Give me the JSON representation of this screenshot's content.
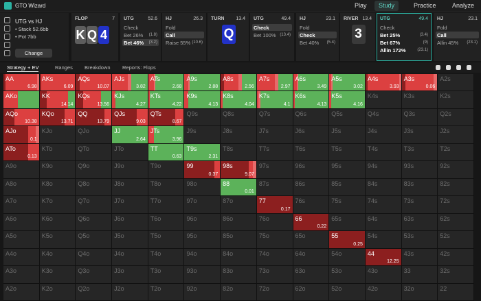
{
  "nav": {
    "logo": "GTO Wizard",
    "links": [
      "Play",
      "Study",
      "Practice",
      "Analyze"
    ],
    "active": 1
  },
  "spot": {
    "title": "UTG vs HJ",
    "stack": "• Stack 52.6bb",
    "pot": "• Pot 7bb",
    "button": "Change"
  },
  "nodes": [
    {
      "label": "FLOP",
      "value": 7,
      "cards": [
        {
          "rank": "K",
          "color": "#5d5d5d"
        },
        {
          "rank": "Q",
          "color": "#5d5d5d"
        },
        {
          "rank": "4",
          "color": "#2232c8"
        }
      ]
    },
    {
      "label": "UTG",
      "value": 52.6,
      "selected": 2,
      "options": [
        {
          "text": "Check"
        },
        {
          "text": "Bet 26%",
          "amount": "(1.8)"
        },
        {
          "text": "Bet 46%",
          "amount": "(3.2)"
        }
      ]
    },
    {
      "label": "HJ",
      "value": 26.3,
      "selected": 1,
      "options": [
        {
          "text": "Fold"
        },
        {
          "text": "Call"
        },
        {
          "text": "Raise 55%",
          "amount": "(10.6)"
        }
      ]
    },
    {
      "label": "TURN",
      "value": 13.4,
      "cards": [
        {
          "rank": "Q",
          "color": "#2232c8"
        }
      ]
    },
    {
      "label": "UTG",
      "value": 49.4,
      "selected": 0,
      "options": [
        {
          "text": "Check"
        },
        {
          "text": "Bet 100%",
          "amount": "(13.4)"
        }
      ]
    },
    {
      "label": "HJ",
      "value": 23.1,
      "selected": 1,
      "options": [
        {
          "text": "Fold"
        },
        {
          "text": "Check"
        },
        {
          "text": "Bet 40%",
          "amount": "(5.4)"
        }
      ]
    },
    {
      "label": "RIVER",
      "value": 13.4,
      "cards": [
        {
          "rank": "3",
          "color": "#3a3a3a"
        }
      ]
    },
    {
      "label": "UTG",
      "value": 49.4,
      "active": true,
      "options": [
        {
          "text": "Check",
          "color": "#5cb25a"
        },
        {
          "text": "Bet 25%",
          "amount": "(3.4)",
          "color": "#e86a6a"
        },
        {
          "text": "Bet 67%",
          "amount": "(9)",
          "color": "#dc4040"
        },
        {
          "text": "Allin 172%",
          "amount": "(23.1)",
          "color": "#8c1f1f"
        }
      ]
    },
    {
      "label": "HJ",
      "value": 23.1,
      "selected": 1,
      "options": [
        {
          "text": "Fold"
        },
        {
          "text": "Call"
        },
        {
          "text": "Allin 45%",
          "amount": "(23.1)"
        }
      ]
    }
  ],
  "tabs": {
    "items": [
      "Strategy + EV",
      "Ranges",
      "Breakdown",
      "Reports: Flops"
    ],
    "active": 0
  },
  "grid": {
    "hands": [
      [
        "AA",
        "AKs",
        "AQs",
        "AJs",
        "ATs",
        "A9s",
        "A8s",
        "A7s",
        "A6s",
        "A5s",
        "A4s",
        "A3s",
        "A2s"
      ],
      [
        "AKo",
        "KK",
        "KQs",
        "KJs",
        "KTs",
        "K9s",
        "K8s",
        "K7s",
        "K6s",
        "K5s",
        "K4s",
        "K3s",
        "K2s"
      ],
      [
        "AQo",
        "KQo",
        "QQ",
        "QJs",
        "QTs",
        "Q9s",
        "Q8s",
        "Q7s",
        "Q6s",
        "Q5s",
        "Q4s",
        "Q3s",
        "Q2s"
      ],
      [
        "AJo",
        "KJo",
        "QJo",
        "JJ",
        "JTs",
        "J9s",
        "J8s",
        "J7s",
        "J6s",
        "J5s",
        "J4s",
        "J3s",
        "J2s"
      ],
      [
        "ATo",
        "KTo",
        "QTo",
        "JTo",
        "TT",
        "T9s",
        "T8s",
        "T7s",
        "T6s",
        "T5s",
        "T4s",
        "T3s",
        "T2s"
      ],
      [
        "A9o",
        "K9o",
        "Q9o",
        "J9o",
        "T9o",
        "99",
        "98s",
        "97s",
        "96s",
        "95s",
        "94s",
        "93s",
        "92s"
      ],
      [
        "A8o",
        "K8o",
        "Q8o",
        "J8o",
        "T8o",
        "98o",
        "88",
        "87s",
        "86s",
        "85s",
        "84s",
        "83s",
        "82s"
      ],
      [
        "A7o",
        "K7o",
        "Q7o",
        "J7o",
        "T7o",
        "97o",
        "87o",
        "77",
        "76s",
        "75s",
        "74s",
        "73s",
        "72s"
      ],
      [
        "A6o",
        "K6o",
        "Q6o",
        "J6o",
        "T6o",
        "96o",
        "86o",
        "76o",
        "66",
        "65s",
        "64s",
        "63s",
        "62s"
      ],
      [
        "A5o",
        "K5o",
        "Q5o",
        "J5o",
        "T5o",
        "95o",
        "85o",
        "75o",
        "65o",
        "55",
        "54s",
        "53s",
        "52s"
      ],
      [
        "A4o",
        "K4o",
        "Q4o",
        "J4o",
        "T4o",
        "94o",
        "84o",
        "74o",
        "64o",
        "54o",
        "44",
        "43s",
        "42s"
      ],
      [
        "A3o",
        "K3o",
        "Q3o",
        "J3o",
        "T3o",
        "93o",
        "83o",
        "73o",
        "63o",
        "53o",
        "43o",
        "33",
        "32s"
      ],
      [
        "A2o",
        "K2o",
        "Q2o",
        "J2o",
        "T2o",
        "92o",
        "82o",
        "72o",
        "62o",
        "52o",
        "42o",
        "32o",
        "22"
      ]
    ],
    "ev": [
      [
        6.98,
        6.09,
        10.07,
        3.82,
        2.68,
        2.88,
        2.56,
        2.97,
        3.49,
        3.02,
        3.93,
        0.06,
        null
      ],
      [
        null,
        14.14,
        13.56,
        4.27,
        4.22,
        4.13,
        4.04,
        4.1,
        4.13,
        4.16,
        null,
        null,
        null
      ],
      [
        10.38,
        13.71,
        13.79,
        9.03,
        8.67,
        null,
        null,
        null,
        null,
        null,
        null,
        null,
        null
      ],
      [
        0.1,
        null,
        null,
        2.64,
        3.96,
        null,
        null,
        null,
        null,
        null,
        null,
        null,
        null
      ],
      [
        0.13,
        null,
        null,
        null,
        0.63,
        2.31,
        null,
        null,
        null,
        null,
        null,
        null,
        null
      ],
      [
        null,
        null,
        null,
        null,
        null,
        0.37,
        9.07,
        null,
        null,
        null,
        null,
        null,
        null
      ],
      [
        null,
        null,
        null,
        null,
        null,
        null,
        0.01,
        null,
        null,
        null,
        null,
        null,
        null
      ],
      [
        null,
        null,
        null,
        null,
        null,
        null,
        null,
        0.17,
        null,
        null,
        null,
        null,
        null
      ],
      [
        null,
        null,
        null,
        null,
        null,
        null,
        null,
        null,
        0.22,
        null,
        null,
        null,
        null
      ],
      [
        null,
        null,
        null,
        null,
        null,
        null,
        null,
        null,
        null,
        0.25,
        null,
        null,
        null
      ],
      [
        null,
        null,
        null,
        null,
        null,
        null,
        null,
        null,
        null,
        null,
        12.25,
        null,
        null
      ],
      [
        null,
        null,
        null,
        null,
        null,
        null,
        null,
        null,
        null,
        null,
        null,
        null,
        null
      ],
      [
        null,
        null,
        null,
        null,
        null,
        null,
        null,
        null,
        null,
        null,
        null,
        null,
        null
      ]
    ],
    "mix": [
      [
        [
          0,
          0.05,
          0.9,
          0.05
        ],
        [
          0,
          0,
          0.95,
          0.05
        ],
        [
          0,
          0,
          0.9,
          0.1
        ],
        [
          0.45,
          0.1,
          0.45,
          0
        ],
        [
          0.8,
          0.05,
          0.15,
          0
        ],
        [
          0.85,
          0.05,
          0.1,
          0
        ],
        [
          0.4,
          0.1,
          0.4,
          0.1
        ],
        [
          0.4,
          0.1,
          0.5,
          0
        ],
        [
          0.85,
          0.05,
          0.1,
          0
        ],
        [
          0.9,
          0.05,
          0.05,
          0
        ],
        [
          0,
          0.05,
          0.9,
          0.05
        ],
        [
          0,
          0.1,
          0.8,
          0.1
        ],
        null
      ],
      [
        [
          0.6,
          0,
          0.4,
          0
        ],
        [
          0.2,
          0,
          0.6,
          0.2
        ],
        [
          0.3,
          0,
          0.5,
          0.2
        ],
        [
          0.9,
          0,
          0.1,
          0
        ],
        [
          0.95,
          0,
          0.05,
          0
        ],
        [
          0.9,
          0,
          0.1,
          0
        ],
        [
          0.95,
          0,
          0.05,
          0
        ],
        [
          0.9,
          0.05,
          0.05,
          0
        ],
        [
          0.95,
          0,
          0.05,
          0
        ],
        [
          0.95,
          0,
          0.05,
          0
        ],
        null,
        null,
        null
      ],
      [
        [
          0,
          0,
          0.7,
          0.3
        ],
        [
          0,
          0,
          0.3,
          0.7
        ],
        [
          0,
          0,
          0.2,
          0.8
        ],
        [
          0,
          0,
          0.3,
          0.7
        ],
        [
          0,
          0,
          0.25,
          0.75
        ],
        null,
        null,
        null,
        null,
        null,
        null,
        null,
        null
      ],
      [
        [
          0,
          0.1,
          0.2,
          0.7
        ],
        null,
        null,
        [
          1,
          0,
          0,
          0
        ],
        [
          0.85,
          0,
          0.15,
          0
        ],
        null,
        null,
        null,
        null,
        null,
        null,
        null,
        null
      ],
      [
        [
          0,
          0,
          0.3,
          0.7
        ],
        null,
        null,
        null,
        [
          1,
          0,
          0,
          0
        ],
        [
          1,
          0,
          0,
          0
        ],
        null,
        null,
        null,
        null,
        null,
        null,
        null
      ],
      [
        null,
        null,
        null,
        null,
        null,
        [
          0,
          0,
          0.15,
          0.85
        ],
        [
          0,
          0.1,
          0.1,
          0.8
        ],
        null,
        null,
        null,
        null,
        null,
        null
      ],
      [
        null,
        null,
        null,
        null,
        null,
        null,
        [
          1,
          0,
          0,
          0
        ],
        null,
        null,
        null,
        null,
        null,
        null
      ],
      [
        null,
        null,
        null,
        null,
        null,
        null,
        null,
        [
          0,
          0,
          0,
          1
        ],
        null,
        null,
        null,
        null,
        null
      ],
      [
        null,
        null,
        null,
        null,
        null,
        null,
        null,
        null,
        [
          0,
          0,
          0,
          1
        ],
        null,
        null,
        null,
        null
      ],
      [
        null,
        null,
        null,
        null,
        null,
        null,
        null,
        null,
        null,
        [
          0,
          0,
          0,
          1
        ],
        null,
        null,
        null
      ],
      [
        null,
        null,
        null,
        null,
        null,
        null,
        null,
        null,
        null,
        null,
        [
          0,
          0,
          0,
          1
        ],
        null,
        null
      ],
      [
        null,
        null,
        null,
        null,
        null,
        null,
        null,
        null,
        null,
        null,
        null,
        null,
        null
      ],
      [
        null,
        null,
        null,
        null,
        null,
        null,
        null,
        null,
        null,
        null,
        null,
        null,
        null
      ]
    ]
  }
}
